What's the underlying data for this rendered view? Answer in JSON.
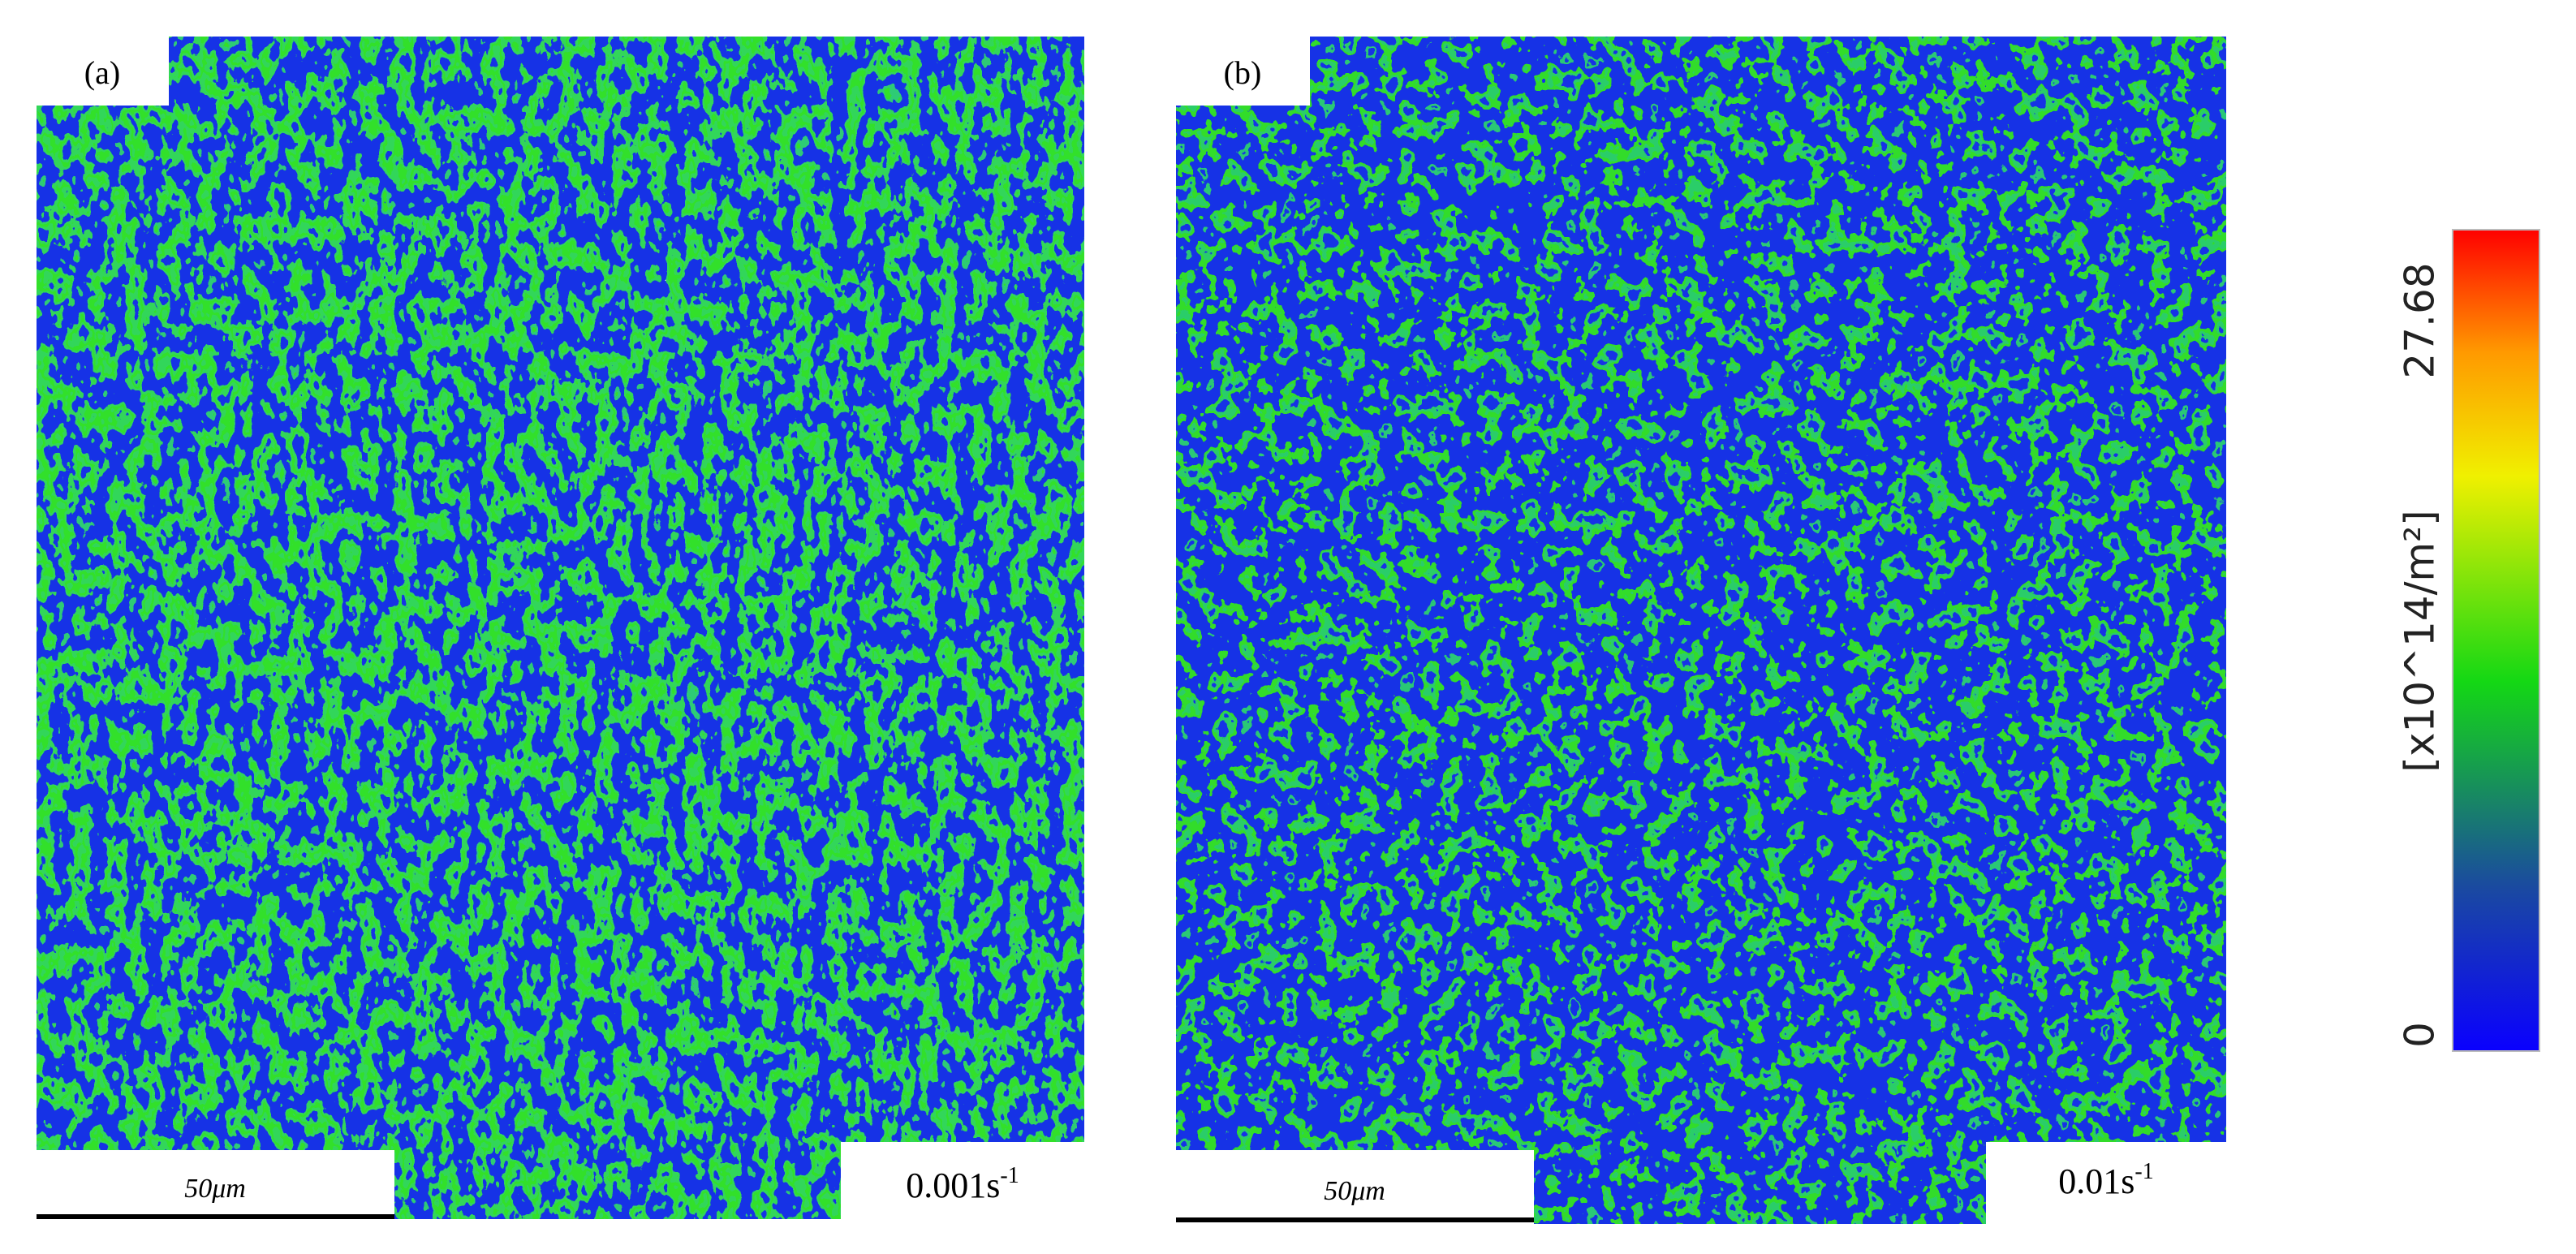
{
  "panels": [
    {
      "label": "(a)",
      "scale_bar": "50μm",
      "strain_rate": {
        "base": "0.001s",
        "exponent": "-1"
      }
    },
    {
      "label": "(b)",
      "scale_bar": "50μm",
      "strain_rate": {
        "base": "0.01s",
        "exponent": "-1"
      }
    }
  ],
  "colorbar": {
    "label": "[x10^14/m²]",
    "min": 0,
    "max": 27.68
  }
}
